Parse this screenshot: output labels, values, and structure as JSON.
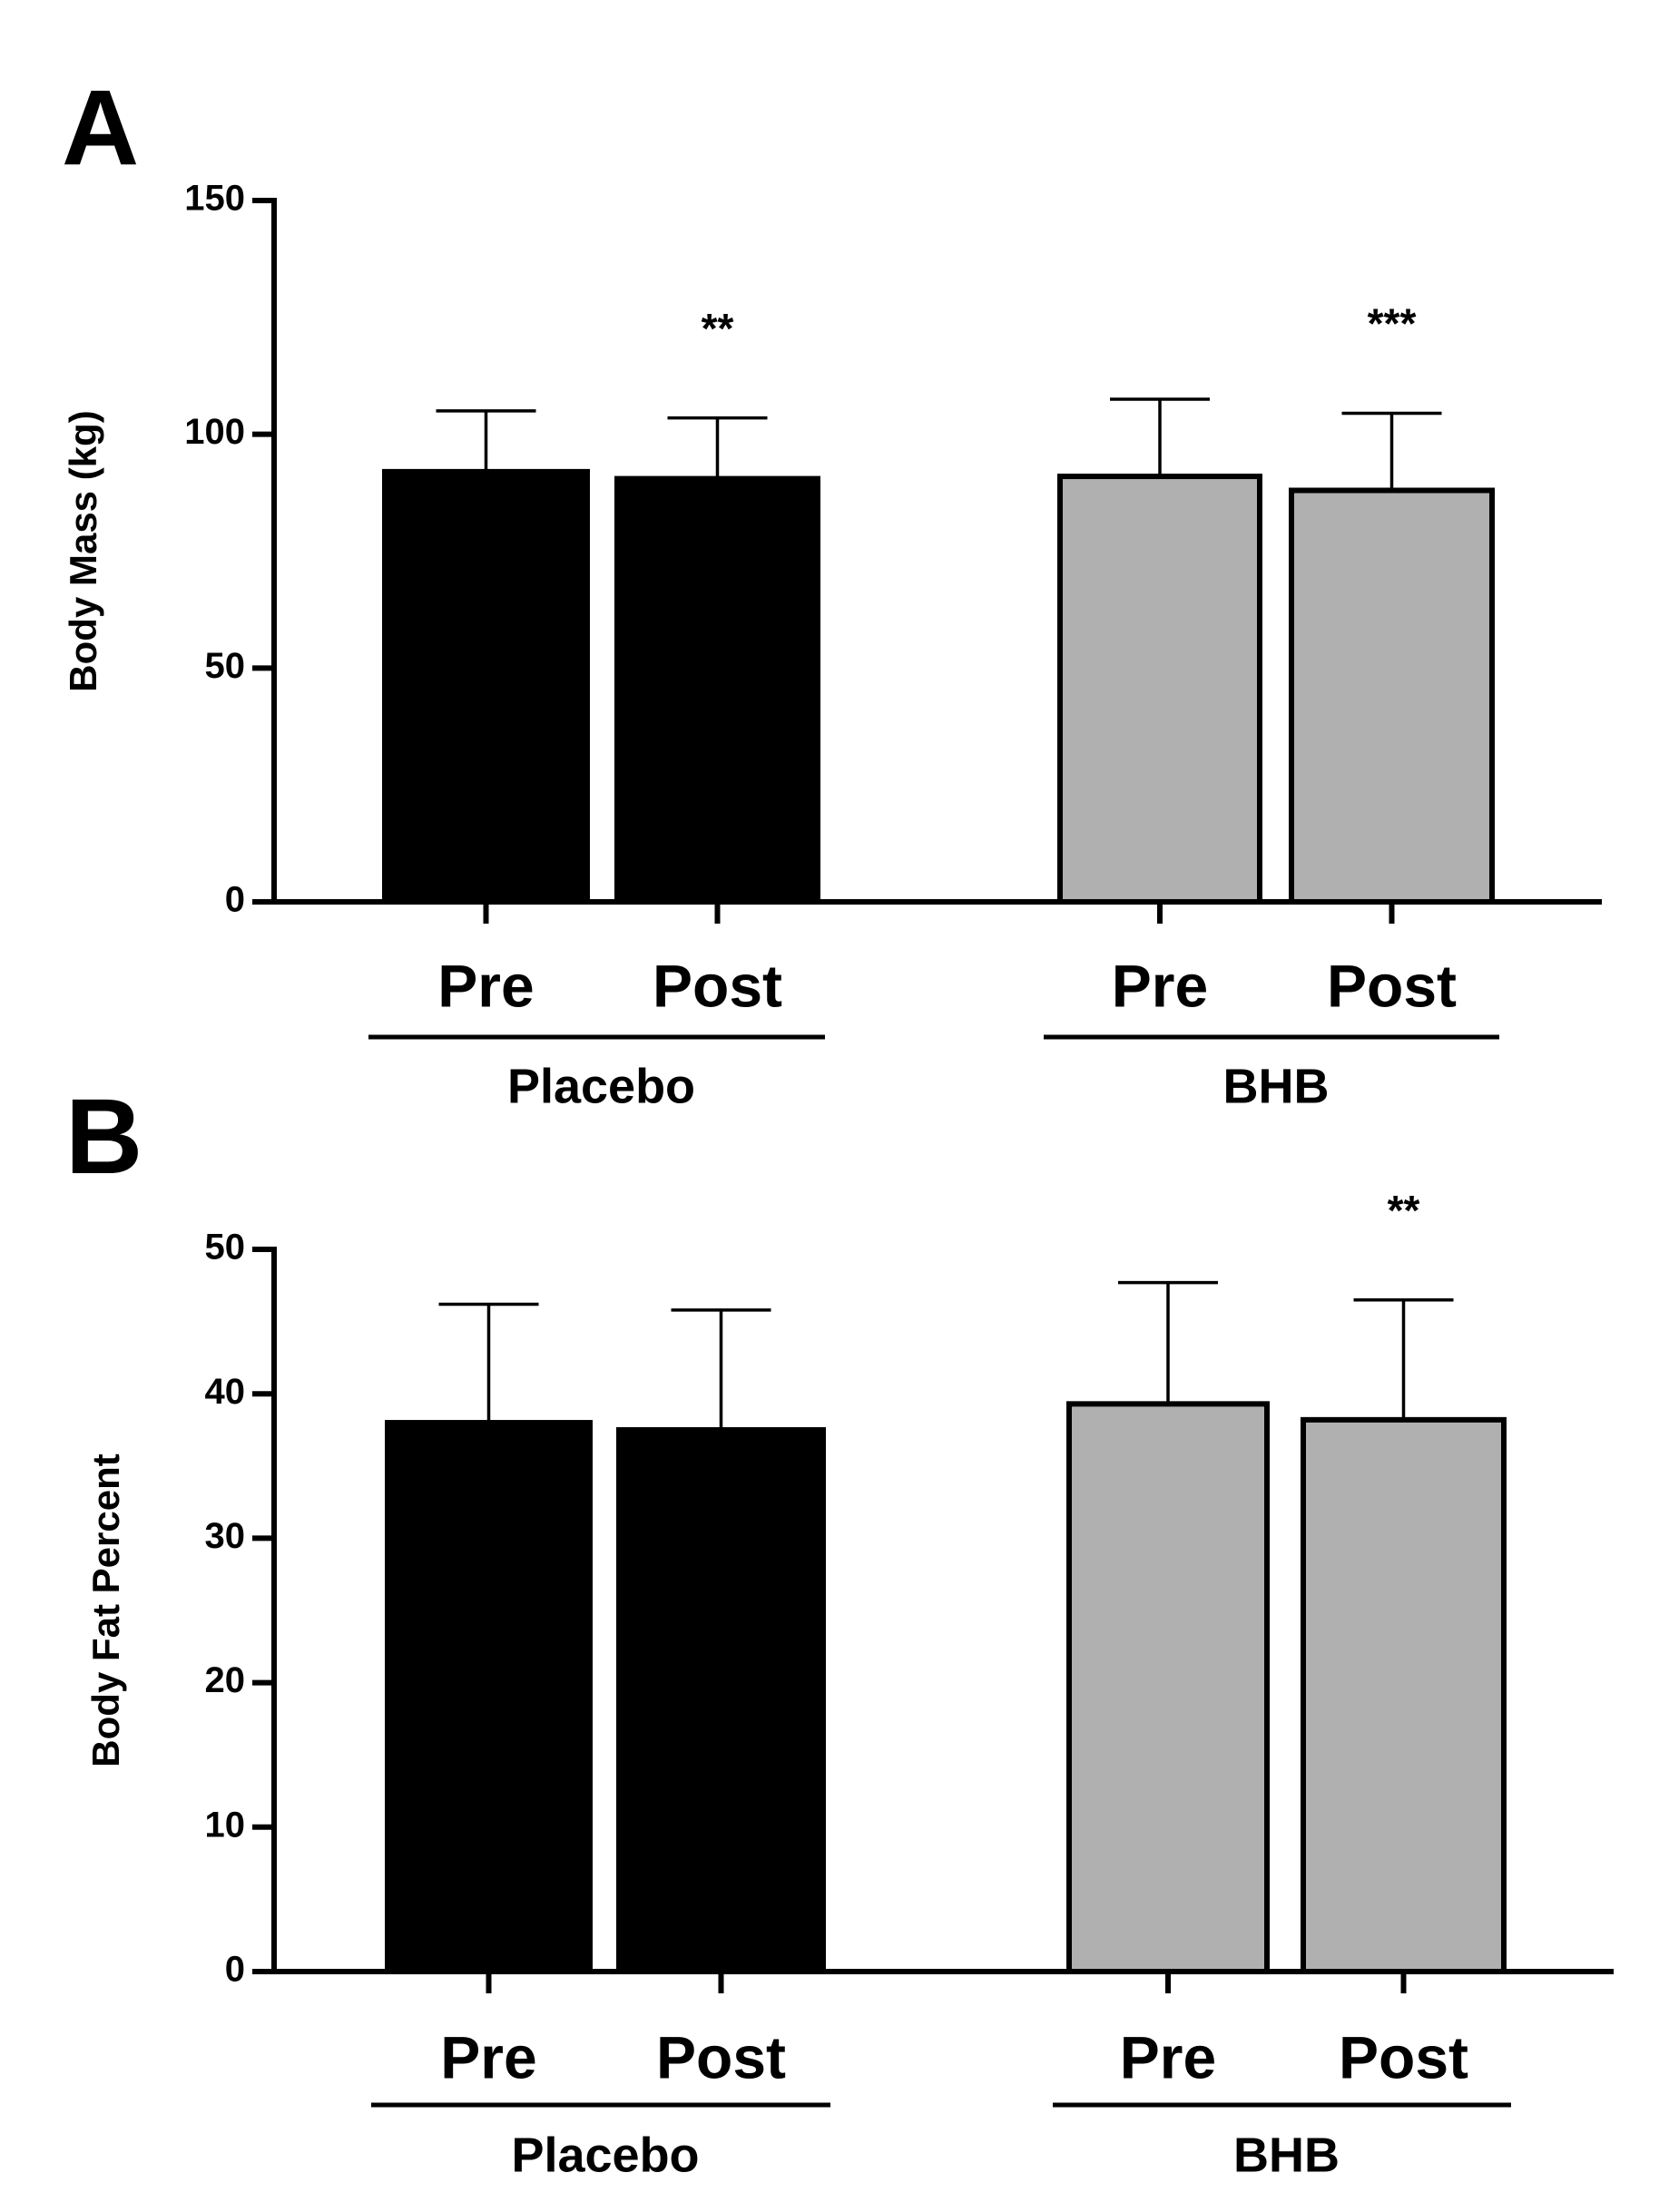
{
  "chart_data": [
    {
      "type": "bar",
      "panel_label": "A",
      "y_label": "Body Mass (kg)",
      "categories": [
        "Pre",
        "Post"
      ],
      "series": [
        {
          "name": "Placebo",
          "color": "#000000",
          "values": [
            92,
            90.5
          ],
          "errors": [
            13,
            13
          ],
          "significance": [
            null,
            "**"
          ]
        },
        {
          "name": "BHB",
          "color": "#b0b0b0",
          "values": [
            91,
            88
          ],
          "errors": [
            16.5,
            16.5
          ],
          "significance": [
            null,
            "***"
          ]
        }
      ],
      "ylim": [
        0,
        150
      ],
      "yticks": [
        0,
        50,
        100,
        150
      ]
    },
    {
      "type": "bar",
      "panel_label": "B",
      "y_label": "Body Fat Percent",
      "categories": [
        "Pre",
        "Post"
      ],
      "series": [
        {
          "name": "Placebo",
          "color": "#000000",
          "values": [
            38,
            37.5
          ],
          "errors": [
            8.2,
            8.3
          ],
          "significance": [
            null,
            null
          ]
        },
        {
          "name": "BHB",
          "color": "#b0b0b0",
          "values": [
            39.3,
            38.2
          ],
          "errors": [
            8.4,
            8.3
          ],
          "significance": [
            null,
            "**"
          ]
        }
      ],
      "ylim": [
        0,
        50
      ],
      "yticks": [
        0,
        10,
        20,
        30,
        40,
        50
      ]
    }
  ]
}
